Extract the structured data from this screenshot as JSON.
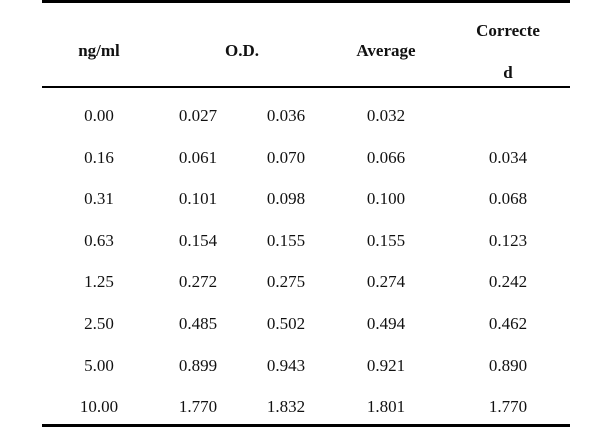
{
  "table": {
    "headers": {
      "concentration": "ng/ml",
      "od": "O.D.",
      "average": "Average",
      "corrected_line1": "Correcte",
      "corrected_line2": "d"
    },
    "rows": [
      {
        "conc": "0.00",
        "od1": "0.027",
        "od2": "0.036",
        "avg": "0.032",
        "corr": ""
      },
      {
        "conc": "0.16",
        "od1": "0.061",
        "od2": "0.070",
        "avg": "0.066",
        "corr": "0.034"
      },
      {
        "conc": "0.31",
        "od1": "0.101",
        "od2": "0.098",
        "avg": "0.100",
        "corr": "0.068"
      },
      {
        "conc": "0.63",
        "od1": "0.154",
        "od2": "0.155",
        "avg": "0.155",
        "corr": "0.123"
      },
      {
        "conc": "1.25",
        "od1": "0.272",
        "od2": "0.275",
        "avg": "0.274",
        "corr": "0.242"
      },
      {
        "conc": "2.50",
        "od1": "0.485",
        "od2": "0.502",
        "avg": "0.494",
        "corr": "0.462"
      },
      {
        "conc": "5.00",
        "od1": "0.899",
        "od2": "0.943",
        "avg": "0.921",
        "corr": "0.890"
      },
      {
        "conc": "10.00",
        "od1": "1.770",
        "od2": "1.832",
        "avg": "1.801",
        "corr": "1.770"
      }
    ]
  }
}
